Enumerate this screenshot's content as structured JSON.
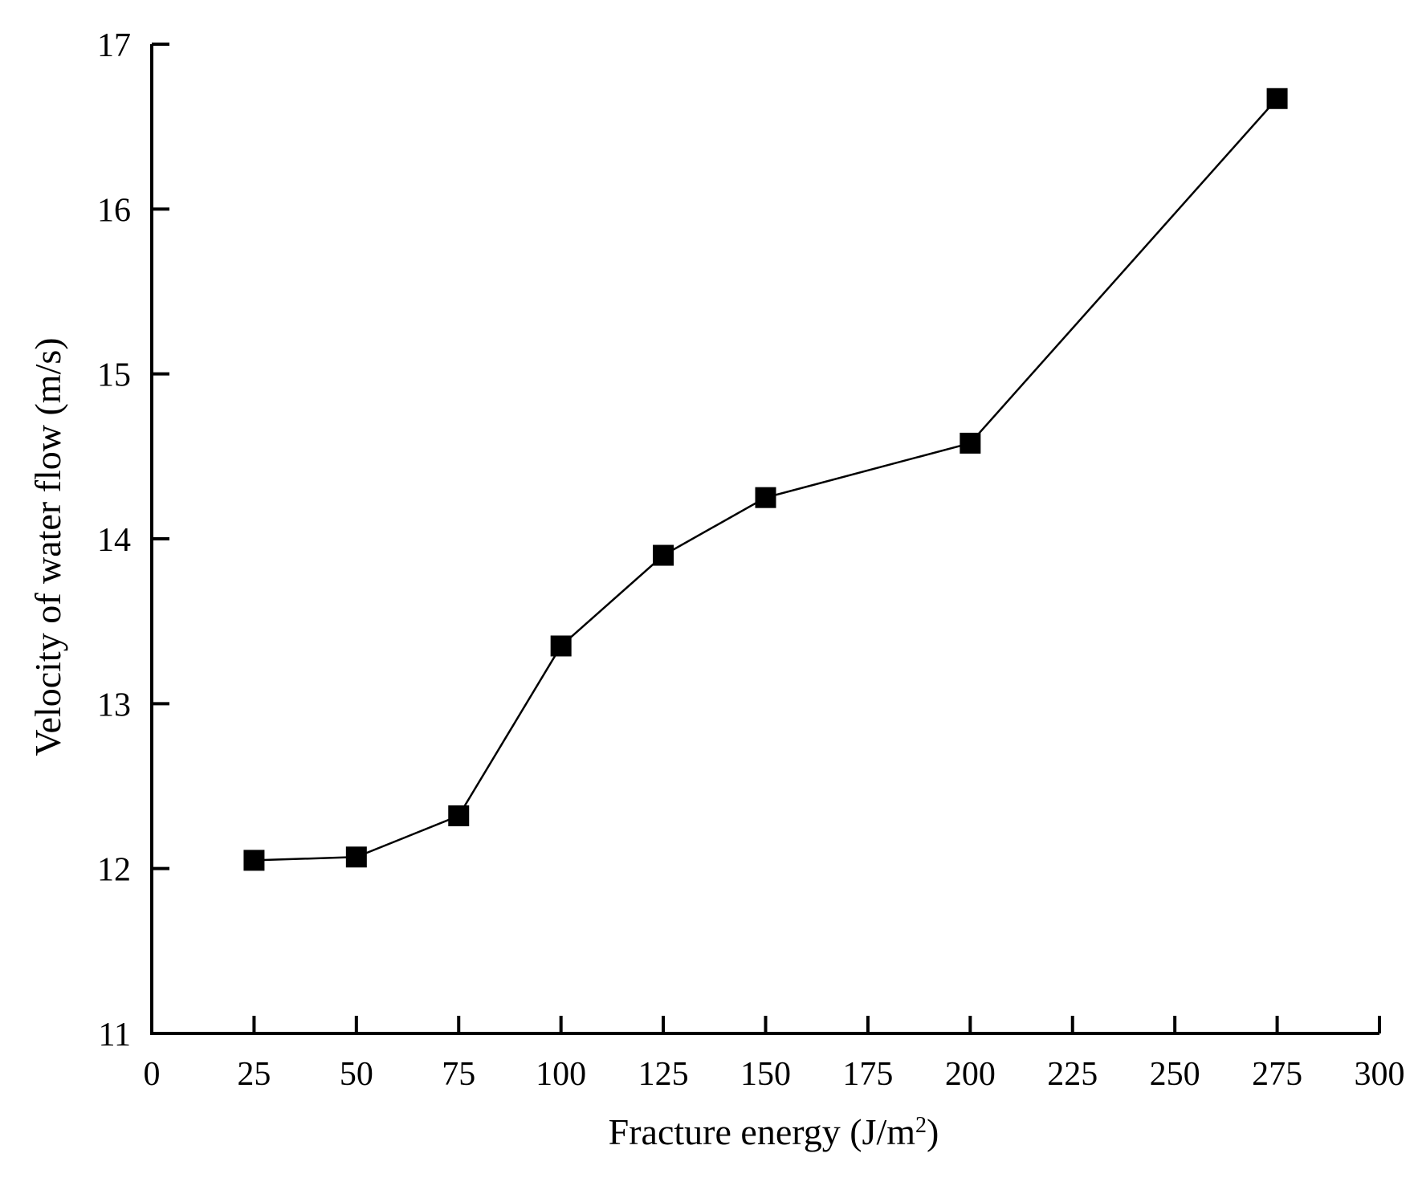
{
  "chart_data": {
    "type": "line",
    "title": "",
    "xlabel": "Fracture energy (J/m",
    "xlabel_sup": "2",
    "xlabel_close": ")",
    "ylabel": "Velocity of water flow (m/s)",
    "xlim": [
      0,
      300
    ],
    "ylim": [
      11,
      17
    ],
    "xticks": [
      0,
      25,
      50,
      75,
      100,
      125,
      150,
      175,
      200,
      225,
      250,
      275,
      300
    ],
    "yticks": [
      11,
      12,
      13,
      14,
      15,
      16,
      17
    ],
    "grid": false,
    "marker": "square",
    "colors": {
      "line": "#000000",
      "marker": "#000000"
    },
    "series": [
      {
        "x": [
          25,
          50,
          75,
          100,
          125,
          150,
          200,
          275
        ],
        "y": [
          12.05,
          12.07,
          12.32,
          13.35,
          13.9,
          14.25,
          14.58,
          16.67
        ]
      }
    ]
  }
}
